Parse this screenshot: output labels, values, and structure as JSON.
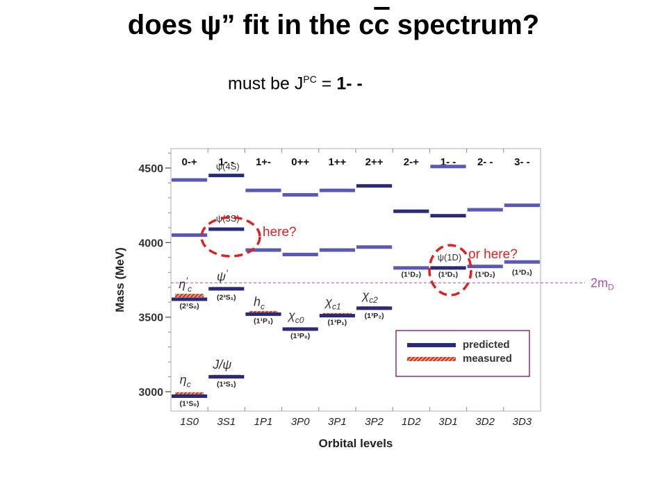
{
  "title": {
    "pre": "does ψ” fit in the c",
    "cbar": "c",
    "post": " spectrum?"
  },
  "subtitle": {
    "pre": "must be J",
    "sup": "PC",
    "eq": " = ",
    "val": "1- -"
  },
  "annotations": {
    "here": "here?",
    "or_here": "or here?",
    "two_md": "2m",
    "two_md_sub": "D"
  },
  "legend": {
    "predicted": "predicted",
    "measured": "measured"
  },
  "colors": {
    "predicted": "#2a2a7a",
    "predicted_light": "#5a58b8",
    "measured": "#d8432f",
    "threshold": "#b04ab0",
    "circle": "#e02020",
    "legend_border": "#8a2a8a"
  },
  "chart_data": {
    "type": "diagram",
    "ylabel": "Mass (MeV)",
    "xlabel": "Orbital levels",
    "ylim": [
      2870,
      4630
    ],
    "yticks": [
      "3000",
      "3500",
      "4000",
      "4500"
    ],
    "columns": [
      {
        "jpc": "0-+",
        "level": "1S0"
      },
      {
        "jpc": "1- -",
        "level": "3S1"
      },
      {
        "jpc": "1+-",
        "level": "1P1"
      },
      {
        "jpc": "0++",
        "level": "3P0"
      },
      {
        "jpc": "1++",
        "level": "3P1"
      },
      {
        "jpc": "2++",
        "level": "3P2"
      },
      {
        "jpc": "2-+",
        "level": "1D2"
      },
      {
        "jpc": "1- -",
        "level": "3D1"
      },
      {
        "jpc": "2- -",
        "level": "3D2"
      },
      {
        "jpc": "3- -",
        "level": "3D3"
      }
    ],
    "predicted": [
      {
        "col": 0,
        "mass": 2970,
        "shade": "dark"
      },
      {
        "col": 0,
        "mass": 3620,
        "shade": "dark"
      },
      {
        "col": 0,
        "mass": 4050,
        "shade": "light"
      },
      {
        "col": 0,
        "mass": 4420,
        "shade": "light"
      },
      {
        "col": 1,
        "mass": 3100,
        "shade": "dark"
      },
      {
        "col": 1,
        "mass": 3690,
        "shade": "dark"
      },
      {
        "col": 1,
        "mass": 4090,
        "shade": "dark"
      },
      {
        "col": 1,
        "mass": 4450,
        "shade": "dark"
      },
      {
        "col": 2,
        "mass": 3520,
        "shade": "dark"
      },
      {
        "col": 2,
        "mass": 3950,
        "shade": "light"
      },
      {
        "col": 2,
        "mass": 4350,
        "shade": "light"
      },
      {
        "col": 3,
        "mass": 3420,
        "shade": "dark"
      },
      {
        "col": 3,
        "mass": 3920,
        "shade": "light"
      },
      {
        "col": 3,
        "mass": 4320,
        "shade": "light"
      },
      {
        "col": 4,
        "mass": 3510,
        "shade": "dark"
      },
      {
        "col": 4,
        "mass": 3950,
        "shade": "light"
      },
      {
        "col": 4,
        "mass": 4350,
        "shade": "light"
      },
      {
        "col": 5,
        "mass": 3560,
        "shade": "dark"
      },
      {
        "col": 5,
        "mass": 3970,
        "shade": "light"
      },
      {
        "col": 5,
        "mass": 4380,
        "shade": "dark"
      },
      {
        "col": 6,
        "mass": 3830,
        "shade": "light"
      },
      {
        "col": 6,
        "mass": 4210,
        "shade": "dark"
      },
      {
        "col": 7,
        "mass": 3830,
        "shade": "dark"
      },
      {
        "col": 7,
        "mass": 4180,
        "shade": "dark"
      },
      {
        "col": 7,
        "mass": 4510,
        "shade": "light"
      },
      {
        "col": 8,
        "mass": 3840,
        "shade": "light"
      },
      {
        "col": 8,
        "mass": 4220,
        "shade": "light"
      },
      {
        "col": 9,
        "mass": 3870,
        "shade": "light"
      },
      {
        "col": 9,
        "mass": 4250,
        "shade": "light"
      }
    ],
    "measured": [
      {
        "col": 0,
        "mass": 2980
      },
      {
        "col": 0,
        "mass": 3640
      },
      {
        "col": 1,
        "mass": 3097
      },
      {
        "col": 1,
        "mass": 3686
      },
      {
        "col": 2,
        "mass": 3525
      },
      {
        "col": 3,
        "mass": 3415
      },
      {
        "col": 4,
        "mass": 3511
      },
      {
        "col": 5,
        "mass": 3556
      }
    ],
    "state_labels": [
      {
        "col": 0,
        "mass": 3560,
        "text": "(2¹S₀)"
      },
      {
        "col": 0,
        "mass": 2905,
        "text": "(1¹S₀)"
      },
      {
        "col": 1,
        "mass": 3618,
        "text": "(2³S₁)"
      },
      {
        "col": 1,
        "mass": 3035,
        "text": "(1³S₁)"
      },
      {
        "col": 2,
        "mass": 3460,
        "text": "(1¹P₁)"
      },
      {
        "col": 3,
        "mass": 3360,
        "text": "(1³P₀)"
      },
      {
        "col": 4,
        "mass": 3450,
        "text": "(1³P₁)"
      },
      {
        "col": 5,
        "mass": 3495,
        "text": "(1³P₂)"
      },
      {
        "col": 6,
        "mass": 3770,
        "text": "(1¹D₂)"
      },
      {
        "col": 7,
        "mass": 3770,
        "text": "(1³D₁)"
      },
      {
        "col": 8,
        "mass": 3770,
        "text": "(1³D₂)"
      },
      {
        "col": 9,
        "mass": 3785,
        "text": "(1³D₃)"
      }
    ],
    "particle_labels": [
      {
        "col": 0,
        "mass": 3695,
        "text": "η",
        "sub": "c",
        "sup": "'"
      },
      {
        "col": 0,
        "mass": 3055,
        "text": "η",
        "sub": "c",
        "sup": ""
      },
      {
        "col": 1,
        "mass": 3745,
        "text": "ψ",
        "sub": "",
        "sup": "'"
      },
      {
        "col": 1,
        "mass": 3155,
        "text": "J/ψ",
        "sub": "",
        "sup": ""
      },
      {
        "col": 2,
        "mass": 3575,
        "text": "h",
        "sub": "c",
        "sup": ""
      },
      {
        "col": 3,
        "mass": 3485,
        "text": "χ",
        "sub": "c0",
        "sup": ""
      },
      {
        "col": 4,
        "mass": 3575,
        "text": "χ",
        "sub": "c1",
        "sup": ""
      },
      {
        "col": 5,
        "mass": 3620,
        "text": "χ",
        "sub": "c2",
        "sup": ""
      }
    ],
    "inset_labels": [
      {
        "col": 1,
        "mass": 4490,
        "text": "ψ(4S)"
      },
      {
        "col": 1,
        "mass": 4140,
        "text": "ψ(3S)"
      },
      {
        "col": 7,
        "mass": 3880,
        "text": "ψ(1D)"
      }
    ],
    "threshold_mass": 3730
  }
}
